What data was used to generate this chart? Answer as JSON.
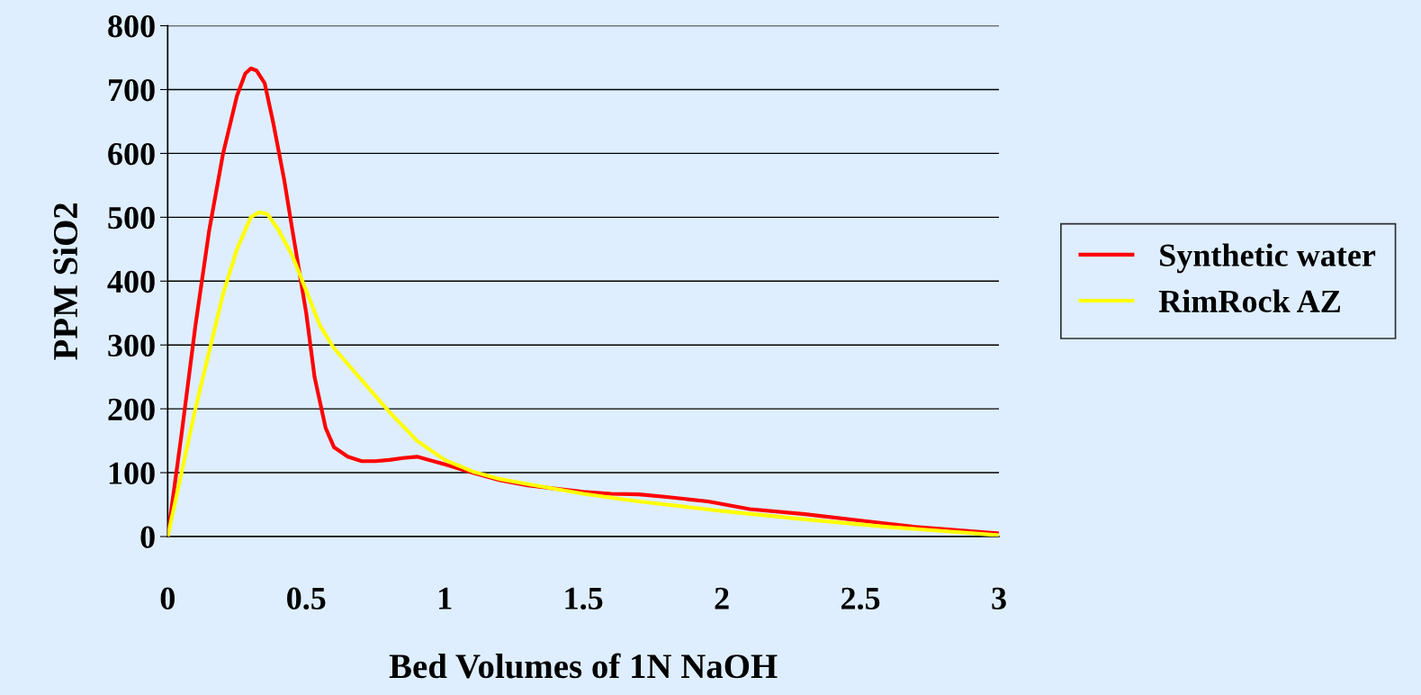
{
  "chart_data": {
    "type": "line",
    "xlabel": "Bed Volumes of 1N NaOH",
    "ylabel": "PPM SiO2",
    "xlim": [
      0,
      3
    ],
    "xticks": [
      0,
      0.5,
      1,
      1.5,
      2,
      2.5,
      3
    ],
    "ylim": [
      0,
      800
    ],
    "yticks": [
      0,
      100,
      200,
      300,
      400,
      500,
      600,
      700,
      800
    ],
    "grid": "y",
    "legend": "right",
    "marker": "none",
    "line_style": "solid",
    "series": [
      {
        "name": "Synthetic water",
        "color": "#ff0000",
        "x": [
          0,
          0.05,
          0.1,
          0.15,
          0.2,
          0.25,
          0.28,
          0.3,
          0.32,
          0.35,
          0.38,
          0.42,
          0.45,
          0.5,
          0.53,
          0.57,
          0.6,
          0.65,
          0.7,
          0.75,
          0.8,
          0.85,
          0.9,
          1.0,
          1.1,
          1.2,
          1.3,
          1.5,
          1.6,
          1.7,
          1.8,
          1.95,
          2.1,
          2.3,
          2.5,
          2.7,
          3
        ],
        "values": [
          0,
          160,
          330,
          480,
          600,
          690,
          725,
          733,
          730,
          710,
          650,
          560,
          480,
          350,
          250,
          170,
          140,
          125,
          118,
          118,
          120,
          123,
          125,
          113,
          100,
          88,
          80,
          70,
          67,
          66,
          62,
          55,
          43,
          35,
          25,
          15,
          5
        ]
      },
      {
        "name": "RimRock AZ",
        "color": "#ffff00",
        "x": [
          0,
          0.05,
          0.1,
          0.15,
          0.2,
          0.25,
          0.3,
          0.33,
          0.36,
          0.4,
          0.45,
          0.5,
          0.55,
          0.6,
          0.7,
          0.8,
          0.9,
          1.0,
          1.1,
          1.2,
          1.3,
          1.5,
          1.7,
          2.0,
          2.3,
          2.6,
          3
        ],
        "values": [
          0,
          100,
          200,
          290,
          380,
          450,
          500,
          508,
          505,
          480,
          440,
          385,
          330,
          295,
          245,
          195,
          150,
          120,
          102,
          90,
          82,
          67,
          55,
          40,
          27,
          15,
          2
        ]
      }
    ]
  }
}
